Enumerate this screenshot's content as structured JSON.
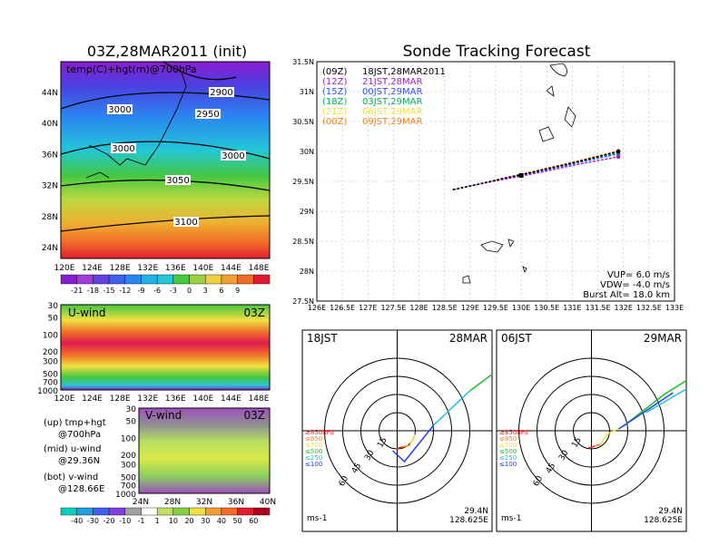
{
  "left_panel": {
    "title": "03Z,28MAR2011 (init)",
    "temp_map": {
      "label": "temp(C)+hgt(m)@700hPa",
      "lat_ticks": [
        "44N",
        "40N",
        "36N",
        "32N",
        "28N",
        "24N"
      ],
      "lon_ticks": [
        "120E",
        "124E",
        "128E",
        "132E",
        "136E",
        "140E",
        "144E",
        "148E"
      ],
      "contours": [
        "2900",
        "3000",
        "2950",
        "3000",
        "3000",
        "3050",
        "3100"
      ],
      "colorbar": [
        "-21",
        "-18",
        "-15",
        "-12",
        "-9",
        "-6",
        "-3",
        "0",
        "3",
        "6",
        "9"
      ]
    },
    "u_section": {
      "label": "U-wind",
      "time": "03Z",
      "p_ticks": [
        "30",
        "50",
        "100",
        "200",
        "300",
        "500",
        "700",
        "1000"
      ],
      "lon_ticks": [
        "120E",
        "124E",
        "128E",
        "132E",
        "136E",
        "140E",
        "144E",
        "148E"
      ]
    },
    "v_section": {
      "label": "V-wind",
      "time": "03Z",
      "p_ticks": [
        "30",
        "50",
        "100",
        "200",
        "300",
        "500",
        "700",
        "1000"
      ],
      "lat_ticks": [
        "24N",
        "28N",
        "32N",
        "36N",
        "40N"
      ]
    },
    "legend_lines": [
      "(up) tmp+hgt",
      "@700hPa",
      "(mid) u-wind",
      "@29.36N",
      "(bot) v-wind",
      "@128.66E"
    ],
    "wind_colorbar": [
      "-40",
      "-30",
      "-20",
      "-10",
      "-1",
      "1",
      "10",
      "20",
      "30",
      "40",
      "50",
      "60"
    ]
  },
  "chart_data": [
    {
      "type": "line",
      "title": "Sonde Tracking Forecast",
      "xlabel": "",
      "ylabel": "",
      "xlim": [
        126,
        133
      ],
      "ylim": [
        27.5,
        31.5
      ],
      "x_ticks": [
        "126E",
        "126.5E",
        "127E",
        "127.5E",
        "128E",
        "128.5E",
        "129E",
        "129.5E",
        "130E",
        "130.5E",
        "131E",
        "131.5E",
        "132E",
        "132.5E",
        "133E"
      ],
      "y_ticks": [
        "31.5N",
        "31N",
        "30.5N",
        "30N",
        "29.5N",
        "29N",
        "28.5N",
        "28N",
        "27.5N"
      ],
      "grid": true,
      "series": [
        {
          "name": "(09Z) 18JST,28MAR2011",
          "color": "#000000",
          "x": [
            128.66,
            129.2,
            129.7,
            130.2,
            130.7,
            131.2,
            131.9
          ],
          "y": [
            29.36,
            29.46,
            29.56,
            29.65,
            29.75,
            29.85,
            30.0
          ]
        },
        {
          "name": "(12Z) 21JST,28MAR",
          "color": "#a020c0",
          "x": [
            128.66,
            129.2,
            129.7,
            130.2,
            130.7,
            131.2,
            131.9
          ],
          "y": [
            29.36,
            29.46,
            29.54,
            29.62,
            29.71,
            29.8,
            29.91
          ]
        },
        {
          "name": "(15Z) 00JST,29MAR",
          "color": "#3050ff",
          "x": [
            128.66,
            129.2,
            129.7,
            130.2,
            130.7,
            131.2,
            131.9
          ],
          "y": [
            29.36,
            29.46,
            29.55,
            29.64,
            29.73,
            29.83,
            29.96
          ]
        },
        {
          "name": "(18Z) 03JST,29MAR",
          "color": "#00b050",
          "x": [
            128.66,
            129.2,
            129.7,
            130.2,
            130.7,
            131.2,
            131.9
          ],
          "y": [
            29.36,
            29.46,
            29.55,
            29.64,
            29.74,
            29.84,
            29.98
          ]
        },
        {
          "name": "(21Z) 06JST,29MAR",
          "color": "#f0e040",
          "x": [
            128.66,
            129.2,
            129.7,
            130.2,
            130.7,
            131.2,
            131.9
          ],
          "y": [
            29.36,
            29.46,
            29.55,
            29.65,
            29.75,
            29.85,
            30.0
          ]
        },
        {
          "name": "(00Z) 09JST,29MAR",
          "color": "#f08020",
          "x": [
            128.66,
            129.2,
            129.7,
            130.2,
            130.7,
            131.2,
            131.9
          ],
          "y": [
            29.36,
            29.46,
            29.56,
            29.66,
            29.76,
            29.86,
            30.01
          ]
        }
      ],
      "annotations": [
        "VUP= 6.0 m/s",
        "VDW= -4.0 m/s",
        "Burst Alt= 18.0 km"
      ]
    },
    {
      "type": "scatter",
      "title": "",
      "panels": [
        {
          "label_left": "18JST",
          "label_right": "28MAR",
          "location": [
            "29.4N",
            "128.625E"
          ]
        },
        {
          "label_left": "06JST",
          "label_right": "29MAR",
          "location": [
            "29.4N",
            "128.625E"
          ]
        }
      ],
      "ring_labels": [
        "15",
        "30",
        "45",
        "60"
      ],
      "units": "ms-1",
      "levels": [
        {
          "label": "≥850hPa",
          "color": "#ff2020"
        },
        {
          "label": "≤850",
          "color": "#ff8020"
        },
        {
          "label": "≤700",
          "color": "#f0e040"
        },
        {
          "label": "≤500",
          "color": "#20c020"
        },
        {
          "label": "≤250",
          "color": "#20c0e0"
        },
        {
          "label": "≤100",
          "color": "#2040ff"
        }
      ]
    }
  ],
  "colors": {
    "ocean": "#ffffff",
    "land_line": "#000000"
  }
}
